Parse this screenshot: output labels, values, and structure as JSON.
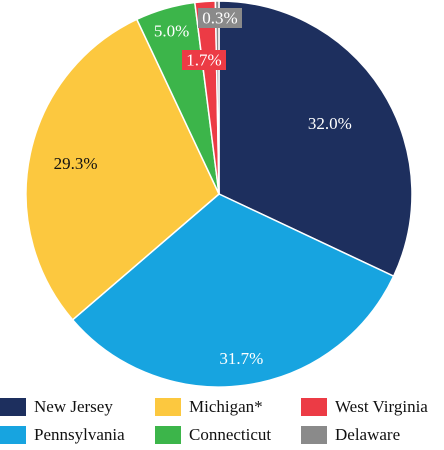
{
  "chart_data": {
    "type": "pie",
    "title": "",
    "categories": [
      "New Jersey",
      "Pennsylvania",
      "Michigan*",
      "Connecticut",
      "West Virginia",
      "Delaware"
    ],
    "values": [
      32.0,
      31.7,
      29.3,
      5.0,
      1.7,
      0.3
    ],
    "labels": [
      "32.0%",
      "31.7%",
      "29.3%",
      "5.0%",
      "1.7%",
      "0.3%"
    ],
    "colors": [
      "#1d2f5e",
      "#17a4e0",
      "#fcc83f",
      "#3cb54a",
      "#ec3b45",
      "#8a8a8a"
    ],
    "legend_position": "bottom",
    "start_angle": "12 o'clock",
    "direction": "clockwise"
  },
  "legend": {
    "items": [
      {
        "label": "New Jersey",
        "color": "#1d2f5e"
      },
      {
        "label": "Michigan*",
        "color": "#fcc83f"
      },
      {
        "label": "West Virginia",
        "color": "#ec3b45"
      },
      {
        "label": "Pennsylvania",
        "color": "#17a4e0"
      },
      {
        "label": "Connecticut",
        "color": "#3cb54a"
      },
      {
        "label": "Delaware",
        "color": "#8a8a8a"
      }
    ]
  }
}
